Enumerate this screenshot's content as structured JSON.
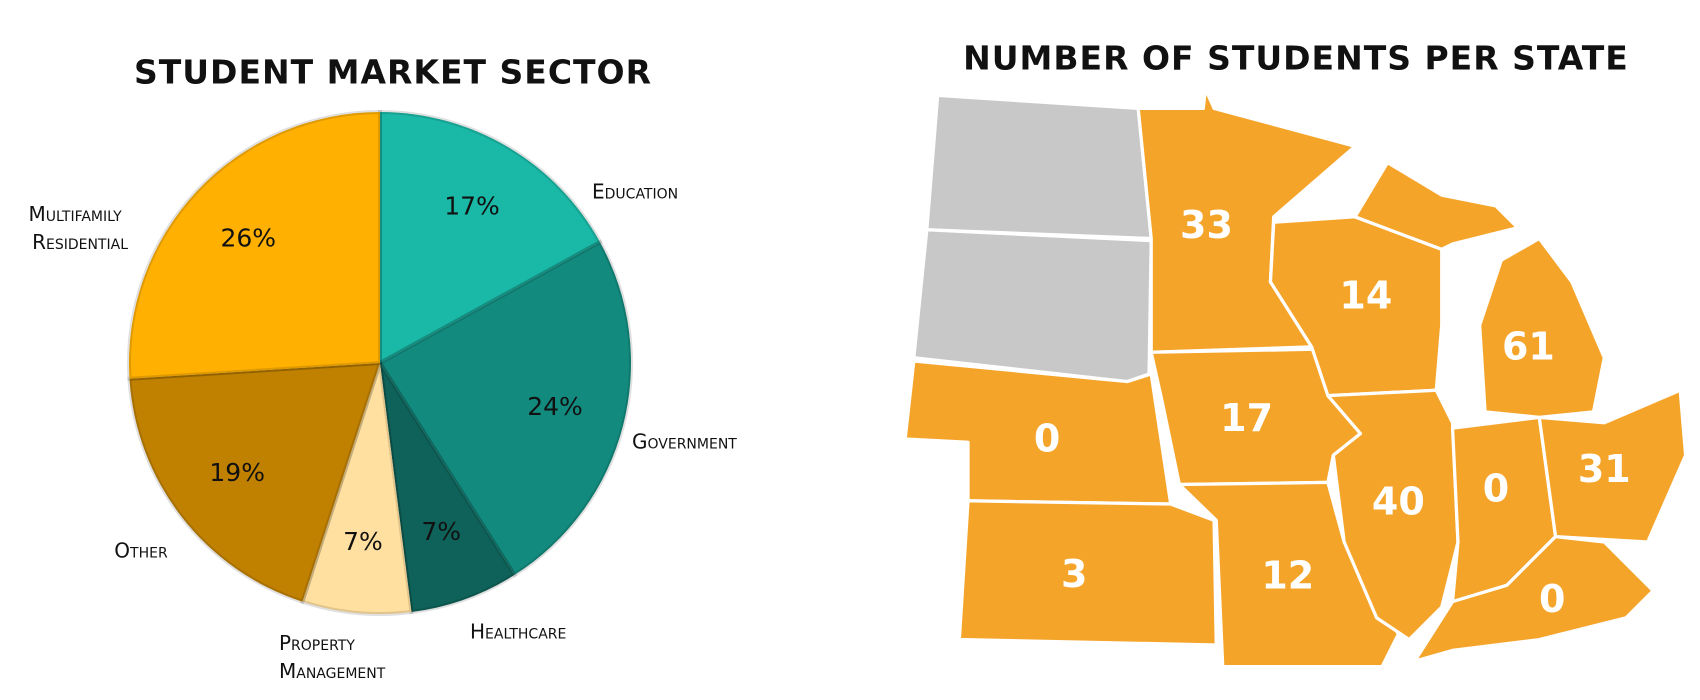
{
  "chart_data": [
    {
      "type": "pie",
      "title": "Student Market Sector",
      "categories": [
        "Education",
        "Government",
        "Healthcare",
        "Property Management",
        "Other",
        "Multifamily Residential"
      ],
      "values": [
        17,
        24,
        7,
        7,
        19,
        26
      ],
      "value_labels": [
        "17%",
        "24%",
        "7%",
        "7%",
        "19%",
        "26%"
      ],
      "colors": [
        "#1ab8a6",
        "#138a7e",
        "#0e6259",
        "#ffe0a0",
        "#c08000",
        "#ffb000"
      ]
    },
    {
      "type": "map",
      "title": "Number of Students per State",
      "values": [
        33,
        14,
        61,
        0,
        17,
        40,
        0,
        31,
        3,
        12,
        0
      ],
      "color": "#f5a42a"
    }
  ]
}
